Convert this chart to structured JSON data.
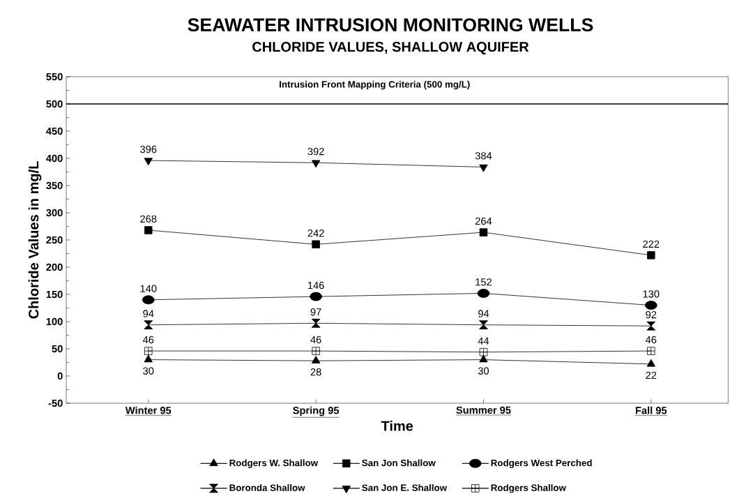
{
  "chart_data": {
    "type": "line",
    "title": "SEAWATER INTRUSION MONITORING WELLS",
    "subtitle": "CHLORIDE VALUES, SHALLOW AQUIFER",
    "xlabel": "Time",
    "ylabel": "Chloride Values in mg/L",
    "categories": [
      "Winter 95",
      "Spring 95",
      "Summer  95",
      "Fall 95"
    ],
    "series": [
      {
        "name": "Rodgers W. Shallow",
        "color": "#000000",
        "marker": "triangle",
        "values": [
          30,
          28,
          30,
          22
        ]
      },
      {
        "name": "San Jon Shallow",
        "color": "#000000",
        "marker": "square",
        "values": [
          268,
          242,
          264,
          222
        ]
      },
      {
        "name": "Rodgers West Perched",
        "color": "#000000",
        "marker": "circle",
        "values": [
          140,
          146,
          152,
          130
        ]
      },
      {
        "name": "Boronda Shallow",
        "color": "#000000",
        "marker": "diamond",
        "values": [
          94,
          97,
          94,
          92
        ]
      },
      {
        "name": "San Jon E. Shallow",
        "color": "#000000",
        "marker": "triangle-down",
        "values": [
          396,
          392,
          384,
          null
        ]
      },
      {
        "name": "Rodgers Shallow",
        "color": "#000000",
        "marker": "cross",
        "values": [
          46,
          46,
          44,
          46
        ]
      }
    ],
    "ylim": [
      -50,
      550
    ],
    "yticks": [
      -50,
      0,
      50,
      100,
      150,
      200,
      250,
      300,
      350,
      400,
      450,
      500,
      550
    ],
    "ref_lines": [
      {
        "axis": "y",
        "value": 500,
        "label": "Intrusion Front Mapping Criteria (500 mg/L)",
        "color": "#000000"
      }
    ],
    "data_labels": true,
    "grid": false,
    "legend": "bottom",
    "line_style": "solid"
  }
}
